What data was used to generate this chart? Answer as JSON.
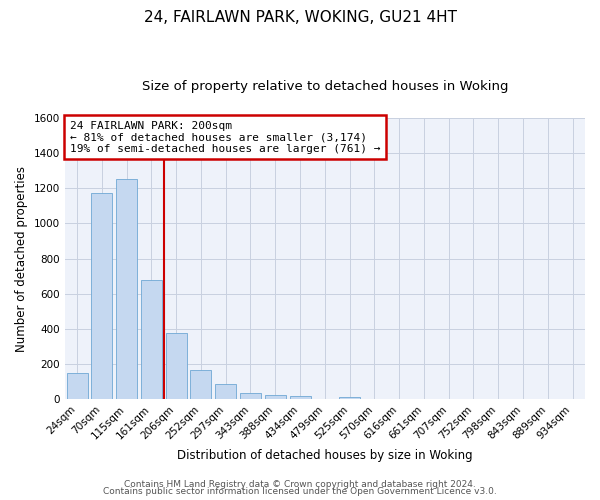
{
  "title": "24, FAIRLAWN PARK, WOKING, GU21 4HT",
  "subtitle": "Size of property relative to detached houses in Woking",
  "xlabel": "Distribution of detached houses by size in Woking",
  "ylabel": "Number of detached properties",
  "bar_labels": [
    "24sqm",
    "70sqm",
    "115sqm",
    "161sqm",
    "206sqm",
    "252sqm",
    "297sqm",
    "343sqm",
    "388sqm",
    "434sqm",
    "479sqm",
    "525sqm",
    "570sqm",
    "616sqm",
    "661sqm",
    "707sqm",
    "752sqm",
    "798sqm",
    "843sqm",
    "889sqm",
    "934sqm"
  ],
  "bar_values": [
    150,
    1170,
    1255,
    680,
    375,
    165,
    90,
    38,
    25,
    20,
    0,
    15,
    0,
    0,
    0,
    0,
    0,
    0,
    0,
    0,
    0
  ],
  "bar_color": "#c5d8f0",
  "bar_edgecolor": "#6fa8d4",
  "vline_x_index": 3.5,
  "vline_color": "#cc0000",
  "annotation_line1": "24 FAIRLAWN PARK: 200sqm",
  "annotation_line2": "← 81% of detached houses are smaller (3,174)",
  "annotation_line3": "19% of semi-detached houses are larger (761) →",
  "annotation_box_edgecolor": "#cc0000",
  "ylim": [
    0,
    1600
  ],
  "yticks": [
    0,
    200,
    400,
    600,
    800,
    1000,
    1200,
    1400,
    1600
  ],
  "footer1": "Contains HM Land Registry data © Crown copyright and database right 2024.",
  "footer2": "Contains public sector information licensed under the Open Government Licence v3.0.",
  "background_color": "#ffffff",
  "axes_background": "#eef2fa",
  "grid_color": "#c8d0e0",
  "title_fontsize": 11,
  "subtitle_fontsize": 9.5,
  "axis_label_fontsize": 8.5,
  "tick_fontsize": 7.5,
  "annotation_fontsize": 8,
  "footer_fontsize": 6.5
}
